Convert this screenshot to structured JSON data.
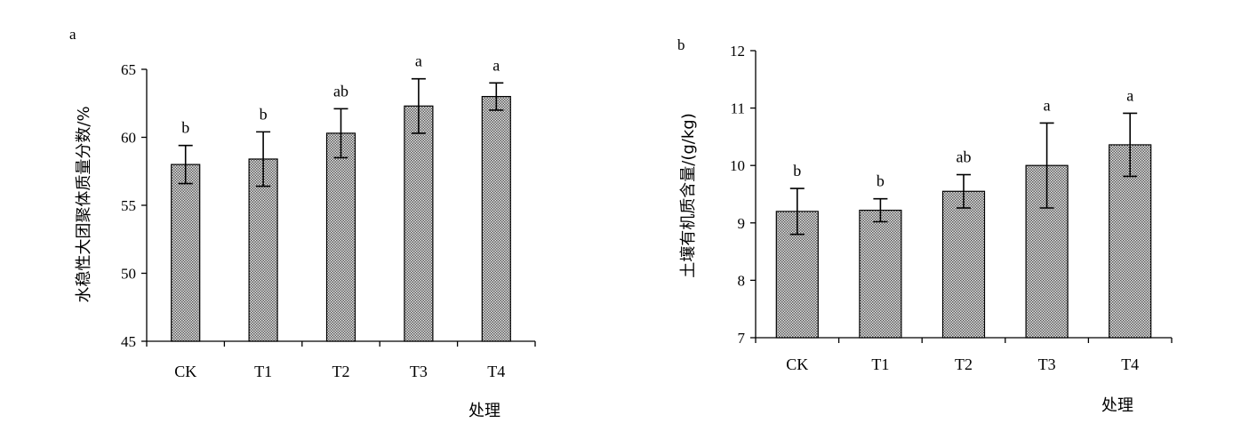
{
  "chart_data": [
    {
      "panel_label": "a",
      "type": "bar",
      "categories": [
        "CK",
        "T1",
        "T2",
        "T3",
        "T4"
      ],
      "values": [
        58.0,
        58.4,
        60.3,
        62.3,
        63.0
      ],
      "errors": [
        1.4,
        2.0,
        1.8,
        2.0,
        1.0
      ],
      "significance": [
        "b",
        "b",
        "ab",
        "a",
        "a"
      ],
      "ylabel": "水稳性大团聚体质量分数/%",
      "xlabel": "处理",
      "ylim": [
        45,
        65
      ],
      "yticks": [
        45,
        50,
        55,
        60,
        65
      ],
      "bar_fill": "#a9a9a9",
      "grid": false
    },
    {
      "panel_label": "b",
      "type": "bar",
      "categories": [
        "CK",
        "T1",
        "T2",
        "T3",
        "T4"
      ],
      "values": [
        9.2,
        9.22,
        9.55,
        10.0,
        10.36
      ],
      "errors": [
        0.4,
        0.2,
        0.29,
        0.74,
        0.55
      ],
      "significance": [
        "b",
        "b",
        "ab",
        "a",
        "a"
      ],
      "ylabel": "土壤有机质含量/(g/kg)",
      "xlabel": "处理",
      "ylim": [
        7,
        12
      ],
      "yticks": [
        7,
        8,
        9,
        10,
        11,
        12
      ],
      "bar_fill": "#a9a9a9",
      "grid": false
    }
  ]
}
